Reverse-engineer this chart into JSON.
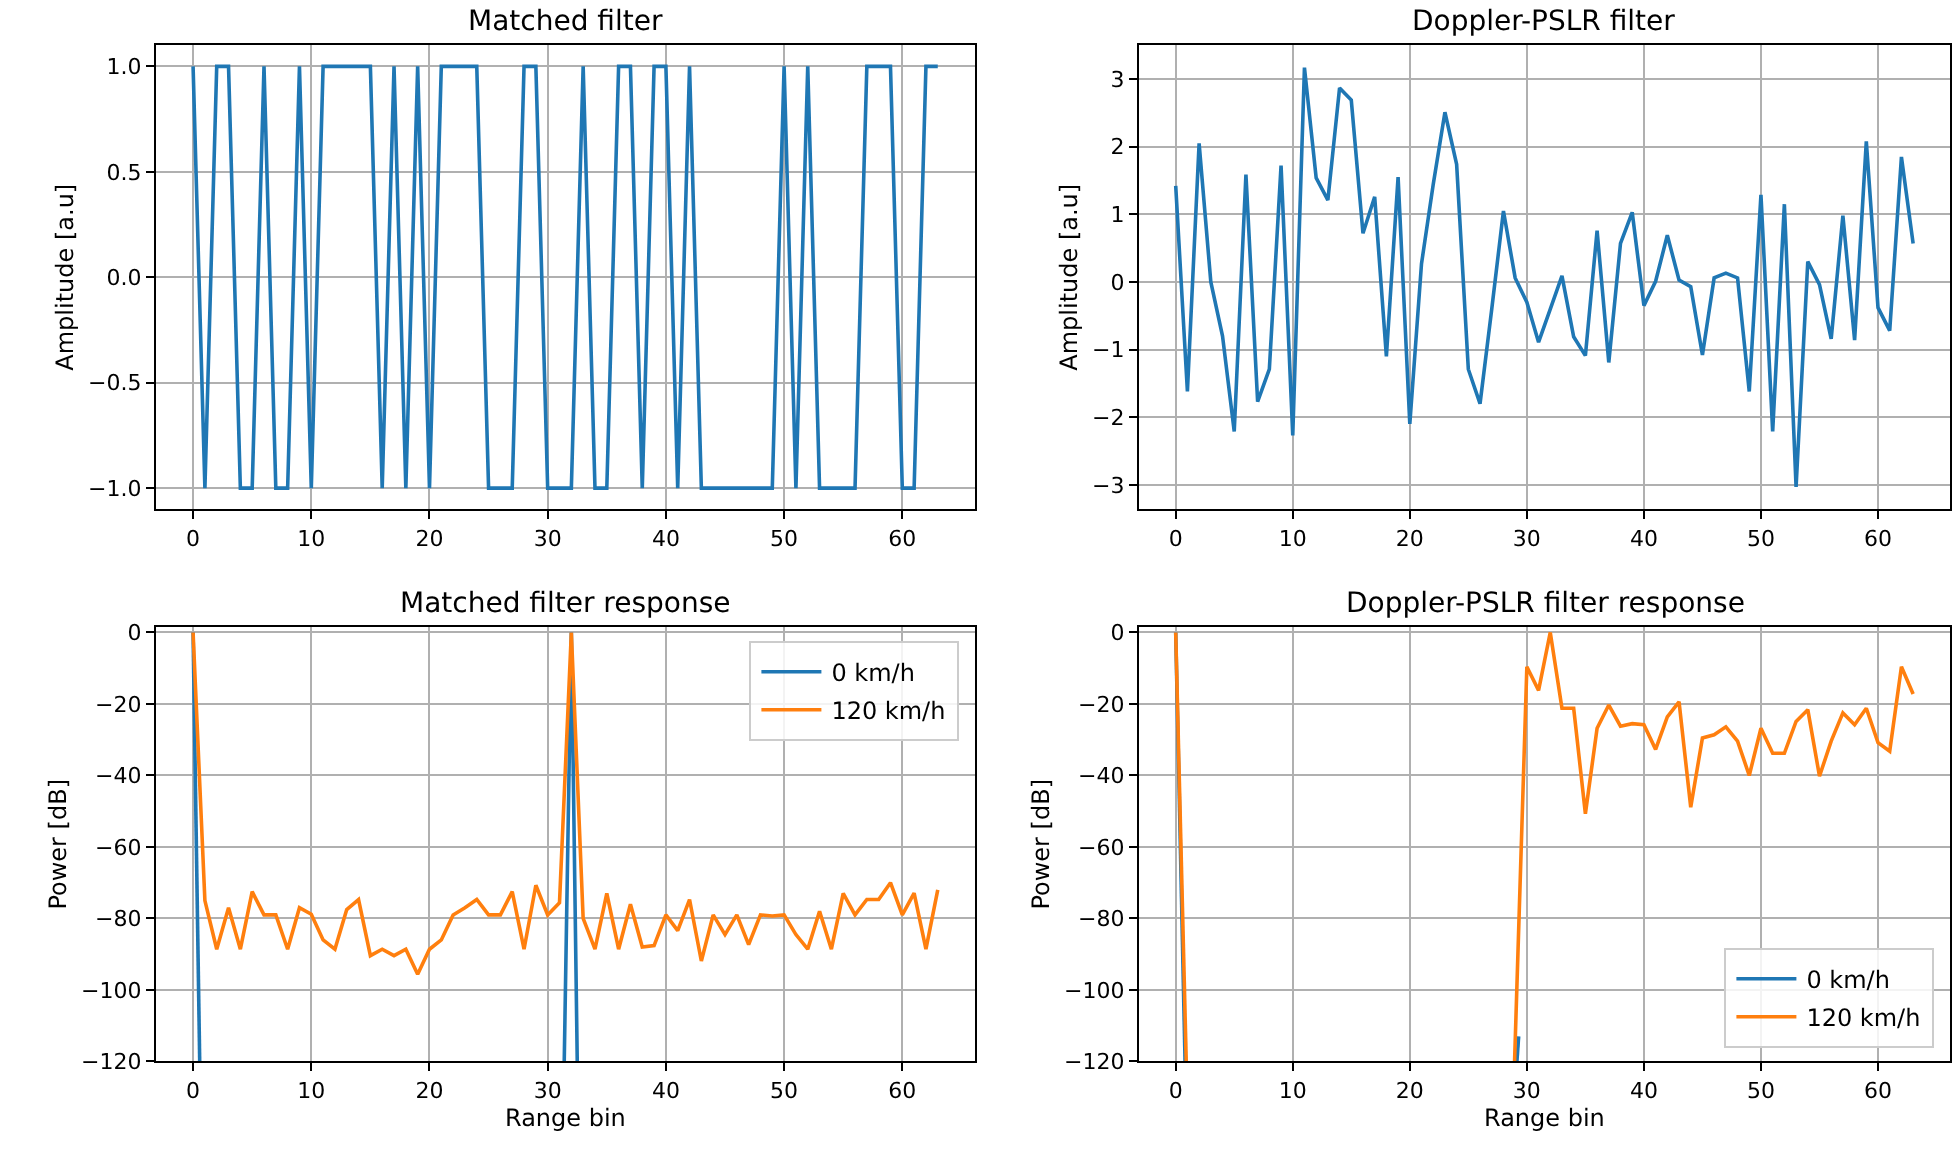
{
  "chart_data": [
    {
      "type": "line",
      "title": "Matched filter",
      "ylabel": "Amplitude [a.u]",
      "grid": true,
      "x": [
        0,
        1,
        2,
        3,
        4,
        5,
        6,
        7,
        8,
        9,
        10,
        11,
        12,
        13,
        14,
        15,
        16,
        17,
        18,
        19,
        20,
        21,
        22,
        23,
        24,
        25,
        26,
        27,
        28,
        29,
        30,
        31,
        32,
        33,
        34,
        35,
        36,
        37,
        38,
        39,
        40,
        41,
        42,
        43,
        44,
        45,
        46,
        47,
        48,
        49,
        50,
        51,
        52,
        53,
        54,
        55,
        56,
        57,
        58,
        59,
        60,
        61,
        62,
        63
      ],
      "series": [
        {
          "color": "#1f77b4",
          "values": [
            1,
            -1,
            1,
            1,
            -1,
            -1,
            1,
            -1,
            -1,
            1,
            -1,
            1,
            1,
            1,
            1,
            1,
            -1,
            1,
            -1,
            1,
            -1,
            1,
            1,
            1,
            1,
            -1,
            -1,
            -1,
            1,
            1,
            -1,
            -1,
            -1,
            1,
            -1,
            -1,
            1,
            1,
            -1,
            1,
            1,
            -1,
            1,
            -1,
            -1,
            -1,
            -1,
            -1,
            -1,
            -1,
            1,
            -1,
            1,
            -1,
            -1,
            -1,
            -1,
            1,
            1,
            1,
            -1,
            -1,
            1,
            1
          ]
        }
      ],
      "xlim": [
        -3.15,
        66.15
      ],
      "xticks": [
        0,
        10,
        20,
        30,
        40,
        50,
        60
      ],
      "ylim": [
        -1.1,
        1.1
      ],
      "yticks": [
        {
          "value": -1,
          "label": "−1.0"
        },
        {
          "value": -0.5,
          "label": "−0.5"
        },
        {
          "value": 0,
          "label": "0.0"
        },
        {
          "value": 0.5,
          "label": "0.5"
        },
        {
          "value": 1,
          "label": "1.0"
        }
      ]
    },
    {
      "type": "line",
      "title": "Doppler-PSLR filter",
      "ylabel": "Amplitude [a.u]",
      "grid": true,
      "x": [
        0,
        1,
        2,
        3,
        4,
        5,
        6,
        7,
        8,
        9,
        10,
        11,
        12,
        13,
        14,
        15,
        16,
        17,
        18,
        19,
        20,
        21,
        22,
        23,
        24,
        25,
        26,
        27,
        28,
        29,
        30,
        31,
        32,
        33,
        34,
        35,
        36,
        37,
        38,
        39,
        40,
        41,
        42,
        43,
        44,
        45,
        46,
        47,
        48,
        49,
        50,
        51,
        52,
        53,
        54,
        55,
        56,
        57,
        58,
        59,
        60,
        61,
        62,
        63
      ],
      "series": [
        {
          "color": "#1f77b4",
          "values": [
            1.42,
            -1.62,
            2.05,
            0,
            -0.8,
            -2.21,
            1.59,
            -1.77,
            -1.29,
            1.72,
            -2.27,
            3.17,
            1.54,
            1.21,
            2.87,
            2.69,
            0.72,
            1.26,
            -1.1,
            1.55,
            -2.1,
            0.27,
            1.44,
            2.51,
            1.74,
            -1.29,
            -1.8,
            -0.4,
            1.05,
            0.06,
            -0.3,
            -0.89,
            -0.4,
            0.09,
            -0.81,
            -1.09,
            0.76,
            -1.19,
            0.57,
            1.03,
            -0.35,
            0.01,
            0.69,
            0.03,
            -0.07,
            -1.08,
            0.06,
            0.13,
            0.06,
            -1.62,
            1.29,
            -2.21,
            1.15,
            -3.03,
            0.3,
            -0.04,
            -0.84,
            0.98,
            -0.86,
            2.08,
            -0.38,
            -0.72,
            1.85,
            0.57
          ]
        }
      ],
      "xlim": [
        -3.15,
        66.15
      ],
      "xticks": [
        0,
        10,
        20,
        30,
        40,
        50,
        60
      ],
      "ylim": [
        -3.36,
        3.5
      ],
      "yticks": [
        {
          "value": -3,
          "label": "−3"
        },
        {
          "value": -2,
          "label": "−2"
        },
        {
          "value": -1,
          "label": "−1"
        },
        0,
        1,
        2,
        3
      ]
    },
    {
      "type": "line",
      "title": "Matched filter response",
      "xlabel": "Range bin",
      "ylabel": "Power [dB]",
      "grid": true,
      "legend": "top right",
      "series": [
        {
          "name": "0 km/h",
          "color": "#1f77b4",
          "x": [
            0,
            0.56,
            16,
            31.4,
            32,
            32.5
          ],
          "values": [
            0,
            -120,
            null,
            -120,
            0,
            -120
          ]
        },
        {
          "name": "120 km/h",
          "color": "#ff7f0e",
          "x": [
            0,
            1,
            2,
            3,
            4,
            5,
            6,
            7,
            8,
            9,
            10,
            11,
            12,
            13,
            14,
            15,
            16,
            17,
            18,
            19,
            20,
            21,
            22,
            23,
            24,
            25,
            26,
            27,
            28,
            29,
            30,
            31,
            32,
            33,
            34,
            35,
            36,
            37,
            38,
            39,
            40,
            41,
            42,
            43,
            44,
            45,
            46,
            47,
            48,
            49,
            50,
            51,
            52,
            53,
            54,
            55,
            56,
            57,
            58,
            59,
            60,
            61,
            62,
            63
          ],
          "values": [
            0,
            -75,
            -88.6,
            -77,
            -88.6,
            -72.5,
            -79,
            -79,
            -88.6,
            -77,
            -78.8,
            -86,
            -88.6,
            -77.5,
            -74.7,
            -90.4,
            -88.6,
            -90.4,
            -88.6,
            -95.6,
            -88.6,
            -86,
            -79,
            -77,
            -74.7,
            -79,
            -79,
            -72.5,
            -88.6,
            -70.7,
            -79,
            -75.6,
            0,
            -80,
            -88.6,
            -73,
            -88.6,
            -76,
            -88,
            -87.6,
            -79,
            -83.4,
            -74.7,
            -91.9,
            -79,
            -84.5,
            -79,
            -87.3,
            -79,
            -79.3,
            -79,
            -84.5,
            -88.6,
            -78,
            -88.6,
            -73,
            -79,
            -74.7,
            -74.7,
            -70,
            -79,
            -72.9,
            -88.6,
            -72
          ]
        }
      ],
      "xlim": [
        -3.15,
        66.15
      ],
      "xticks": [
        0,
        10,
        20,
        30,
        40,
        50,
        60
      ],
      "ylim": [
        -120,
        1.5
      ],
      "yticks": [
        {
          "value": -120,
          "label": "−120"
        },
        {
          "value": -100,
          "label": "−100"
        },
        {
          "value": -80,
          "label": "−80"
        },
        {
          "value": -60,
          "label": "−60"
        },
        {
          "value": -40,
          "label": "−40"
        },
        {
          "value": -20,
          "label": "−20"
        },
        0
      ]
    },
    {
      "type": "line",
      "title": "Doppler-PSLR filter response",
      "xlabel": "Range bin",
      "ylabel": "Power [dB]",
      "grid": true,
      "legend": "bottom right",
      "series": [
        {
          "name": "0 km/h",
          "color": "#1f77b4",
          "x": [
            0,
            0.8,
            16,
            29.15,
            29.3
          ],
          "values": [
            0,
            -120,
            null,
            -120,
            -113
          ]
        },
        {
          "name": "120 km/h",
          "color": "#ff7f0e",
          "x": [
            0,
            0.9,
            16,
            28.95,
            30,
            31,
            32,
            33,
            34,
            35,
            36,
            37,
            38,
            39,
            40,
            41,
            42,
            43,
            44,
            45,
            46,
            47,
            48,
            49,
            50,
            51,
            52,
            53,
            54,
            55,
            56,
            57,
            58,
            59,
            60,
            61,
            62,
            63
          ],
          "values": [
            0,
            -120,
            null,
            -120,
            -9.6,
            -16.2,
            0,
            -21.2,
            -21.2,
            -50.7,
            -26.8,
            -20.3,
            -26.2,
            -25.5,
            -25.8,
            -32.7,
            -23.6,
            -19.4,
            -48.9,
            -29.5,
            -28.6,
            -26.4,
            -30.4,
            -40,
            -26.8,
            -33.8,
            -33.8,
            -24.9,
            -21.6,
            -40.2,
            -30.4,
            -22.5,
            -25.8,
            -21.2,
            -30.8,
            -33.2,
            -9.6,
            -17.2
          ]
        }
      ],
      "xlim": [
        -3.15,
        66.15
      ],
      "xticks": [
        0,
        10,
        20,
        30,
        40,
        50,
        60
      ],
      "ylim": [
        -120,
        1.5
      ],
      "yticks": [
        {
          "value": -120,
          "label": "−120"
        },
        {
          "value": -100,
          "label": "−100"
        },
        {
          "value": -80,
          "label": "−80"
        },
        {
          "value": -60,
          "label": "−60"
        },
        {
          "value": -40,
          "label": "−40"
        },
        {
          "value": -20,
          "label": "−20"
        },
        0
      ]
    }
  ]
}
